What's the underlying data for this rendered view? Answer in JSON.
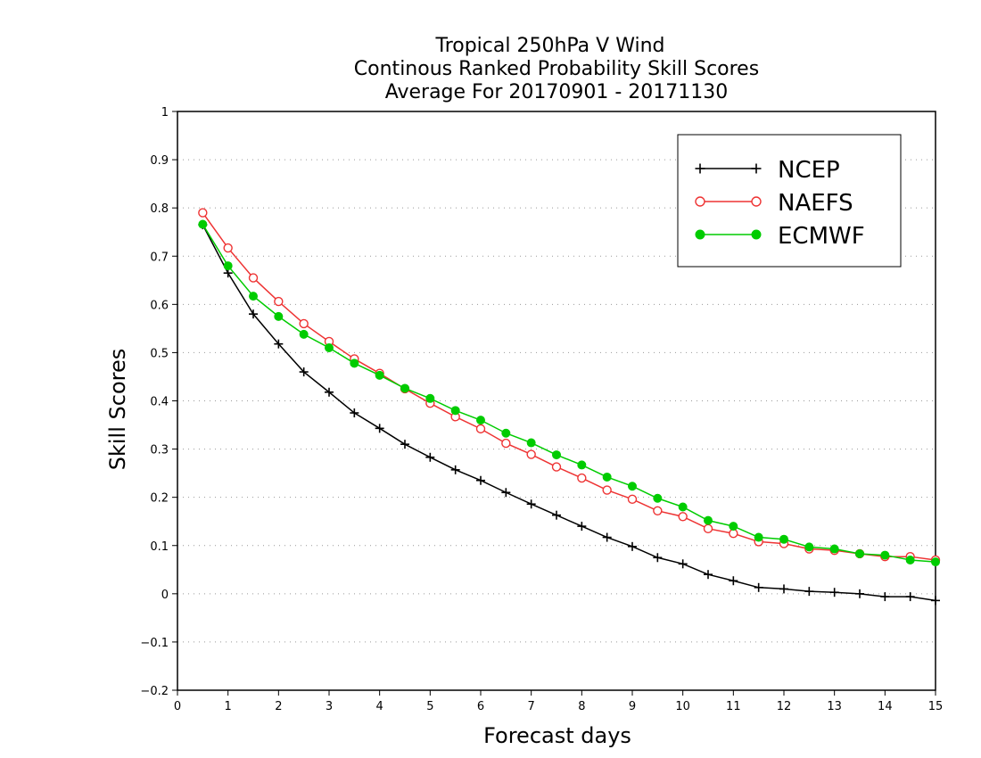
{
  "chart_data": {
    "type": "line",
    "title_lines": [
      "Tropical 250hPa V Wind",
      "Continous Ranked Probability Skill Scores",
      "Average For 20170901 - 20171130"
    ],
    "xlabel": "Forecast days",
    "ylabel": "Skill Scores",
    "xlim": [
      0,
      15
    ],
    "ylim": [
      -0.2,
      1
    ],
    "xticks": [
      "0",
      "1",
      "2",
      "3",
      "4",
      "5",
      "6",
      "7",
      "8",
      "9",
      "10",
      "11",
      "12",
      "13",
      "14",
      "15"
    ],
    "yticks": [
      "−0.2",
      "−0.1",
      "0",
      "0.1",
      "0.2",
      "0.3",
      "0.4",
      "0.5",
      "0.6",
      "0.7",
      "0.8",
      "0.9",
      "1"
    ],
    "grid": "horizontal dotted",
    "legend_position": "top-right",
    "x": [
      0.5,
      1,
      1.5,
      2,
      2.5,
      3,
      3.5,
      4,
      4.5,
      5,
      5.5,
      6,
      6.5,
      7,
      7.5,
      8,
      8.5,
      9,
      9.5,
      10,
      10.5,
      11,
      11.5,
      12,
      12.5,
      13,
      13.5,
      14,
      14.5,
      15
    ],
    "series": [
      {
        "name": "NCEP",
        "color": "#000000",
        "marker": "plus",
        "values": [
          0.765,
          0.665,
          0.58,
          0.518,
          0.46,
          0.418,
          0.375,
          0.343,
          0.31,
          0.283,
          0.257,
          0.235,
          0.21,
          0.186,
          0.163,
          0.14,
          0.117,
          0.098,
          0.075,
          0.062,
          0.04,
          0.027,
          0.013,
          0.01,
          0.005,
          0.003,
          0.0,
          -0.006,
          -0.006,
          -0.014
        ]
      },
      {
        "name": "NAEFS",
        "color": "#ee3333",
        "marker": "open-circle",
        "values": [
          0.79,
          0.717,
          0.655,
          0.606,
          0.56,
          0.523,
          0.487,
          0.457,
          0.425,
          0.395,
          0.367,
          0.342,
          0.312,
          0.289,
          0.263,
          0.24,
          0.215,
          0.196,
          0.172,
          0.16,
          0.135,
          0.125,
          0.108,
          0.104,
          0.093,
          0.09,
          0.083,
          0.077,
          0.077,
          0.07
        ]
      },
      {
        "name": "ECMWF",
        "color": "#00cc00",
        "marker": "filled-circle",
        "values": [
          0.766,
          0.68,
          0.617,
          0.575,
          0.538,
          0.51,
          0.478,
          0.453,
          0.426,
          0.405,
          0.38,
          0.36,
          0.333,
          0.313,
          0.288,
          0.267,
          0.242,
          0.223,
          0.198,
          0.18,
          0.152,
          0.14,
          0.117,
          0.113,
          0.097,
          0.093,
          0.083,
          0.08,
          0.07,
          0.066
        ]
      }
    ]
  }
}
